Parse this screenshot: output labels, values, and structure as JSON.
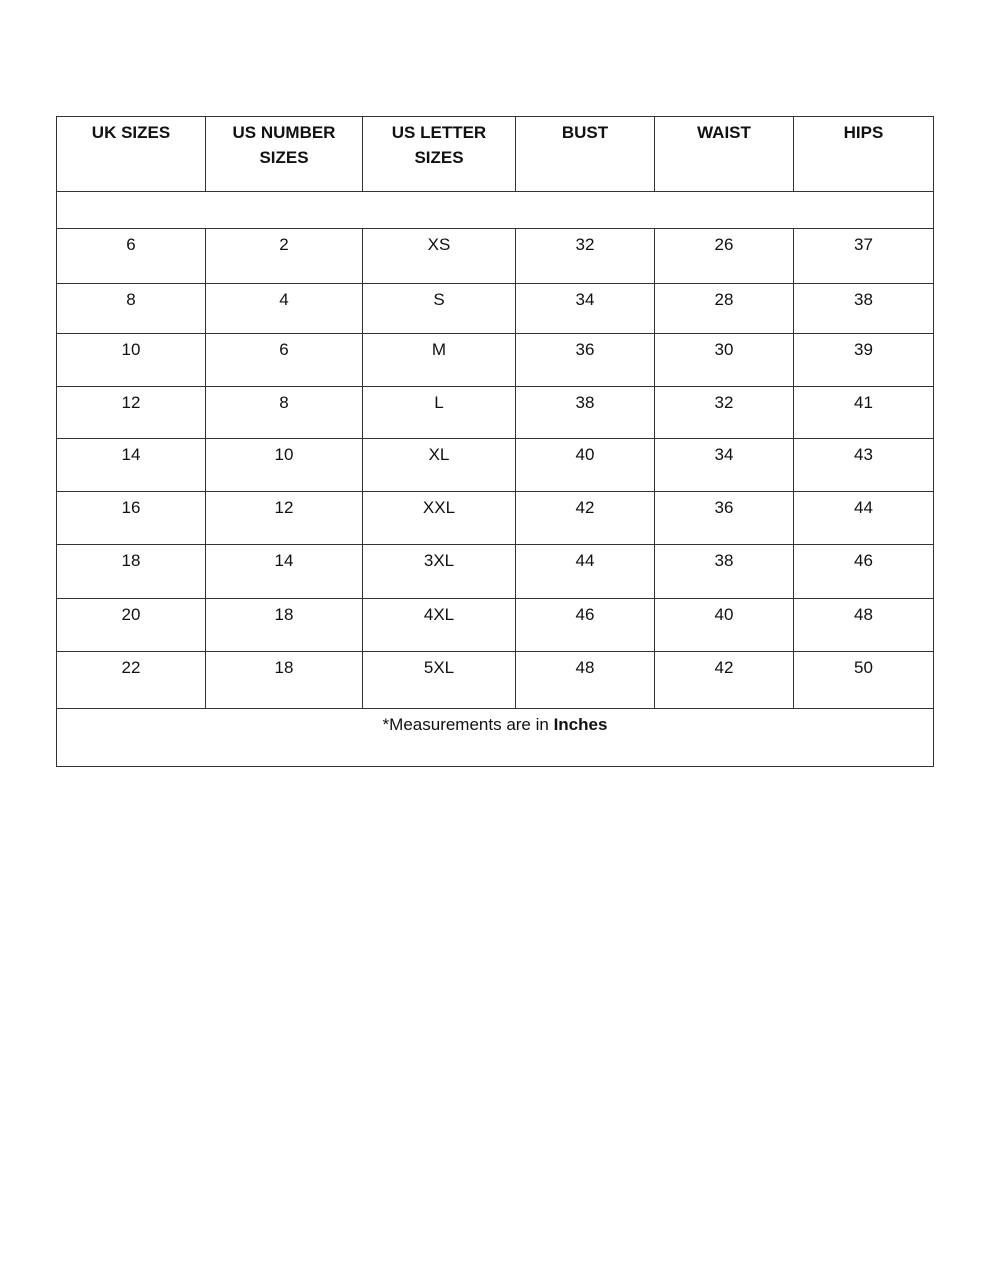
{
  "table": {
    "headers": [
      "UK SIZES",
      "US NUMBER SIZES",
      "US LETTER SIZES",
      "BUST",
      "WAIST",
      "HIPS"
    ],
    "rows": [
      [
        "6",
        "2",
        "XS",
        "32",
        "26",
        "37"
      ],
      [
        "8",
        "4",
        "S",
        "34",
        "28",
        "38"
      ],
      [
        "10",
        "6",
        "M",
        "36",
        "30",
        "39"
      ],
      [
        "12",
        "8",
        "L",
        "38",
        "32",
        "41"
      ],
      [
        "14",
        "10",
        "XL",
        "40",
        "34",
        "43"
      ],
      [
        "16",
        "12",
        "XXL",
        "42",
        "36",
        "44"
      ],
      [
        "18",
        "14",
        "3XL",
        "44",
        "38",
        "46"
      ],
      [
        "20",
        "18",
        "4XL",
        "46",
        "40",
        "48"
      ],
      [
        "22",
        "18",
        "5XL",
        "48",
        "42",
        "50"
      ]
    ],
    "note_prefix": "*Measurements are in ",
    "note_unit": "Inches"
  }
}
